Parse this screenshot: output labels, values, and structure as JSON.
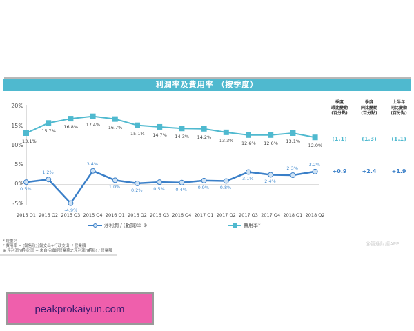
{
  "header": {
    "title": "利潤率及費用率 （按季度）"
  },
  "chart_data": {
    "type": "line",
    "title": "利潤率及費用率 （按季度）",
    "categories": [
      "2015 Q1",
      "2015 Q2",
      "2015 Q3",
      "2015 Q4",
      "2016 Q1",
      "2016 Q2",
      "2016 Q3",
      "2016 Q4",
      "2017 Q1",
      "2017 Q2",
      "2017 Q3",
      "2017 Q4",
      "2018 Q1",
      "2018 Q2"
    ],
    "series": [
      {
        "name": "費用率*",
        "color": "#4fb9cf",
        "marker": "square",
        "values": [
          13.1,
          15.7,
          16.8,
          17.4,
          16.7,
          15.1,
          14.7,
          14.3,
          14.2,
          13.3,
          12.6,
          12.6,
          13.1,
          12.0
        ],
        "labels": [
          "13.1%",
          "15.7%",
          "16.8%",
          "17.4%",
          "16.7%",
          "15.1%",
          "14.7%",
          "14.3%",
          "14.2%",
          "13.3%",
          "12.6%",
          "12.6%",
          "13.1%",
          "12.0%"
        ]
      },
      {
        "name": "淨利潤 / (虧損)率 ⊕",
        "color": "#3a7fc8",
        "marker": "circle",
        "values": [
          0.5,
          1.2,
          -4.9,
          3.4,
          1.0,
          0.2,
          0.5,
          0.4,
          0.9,
          0.8,
          3.1,
          2.4,
          2.3,
          3.2
        ],
        "labels": [
          "0.5%",
          "1.2%",
          "-4.9%",
          "3.4%",
          "1.0%",
          "0.2%",
          "0.5%",
          "0.4%",
          "0.9%",
          "0.8%",
          "3.1%",
          "2.4%",
          "2.3%",
          "3.2%"
        ]
      }
    ],
    "yticks": [
      "20%",
      "15%",
      "10%",
      "5%",
      "0%",
      "-5%"
    ],
    "ylim": [
      -5,
      20
    ],
    "xlabel": "",
    "ylabel": "",
    "grid": false,
    "legend_position": "bottom",
    "side_table": {
      "headers": [
        [
          "季度",
          "環比變動",
          "(百分點)"
        ],
        [
          "季度",
          "同比變動",
          "(百分點)"
        ],
        [
          "上半年",
          "同比變動",
          "(百分點)"
        ]
      ],
      "expense_row": [
        "(1.1)",
        "(1.3)",
        "(1.1)"
      ],
      "net_row": [
        "+0.9",
        "+2.4",
        "+1.9"
      ]
    }
  },
  "legend": {
    "net": "淨利潤 / (虧損)率 ⊕",
    "expense": "費用率*"
  },
  "footnotes": [
    "* 經重列",
    "* 費用率 = (銷售及分銷支出+行政支出) / 營業額",
    "⊕ 淨利潤/(虧損)率 = 來自持續經營業務之淨利潤/(虧損) / 營業額"
  ],
  "watermark": "@智通財經APP",
  "ad": {
    "text": "peakprokaiyun.com"
  }
}
